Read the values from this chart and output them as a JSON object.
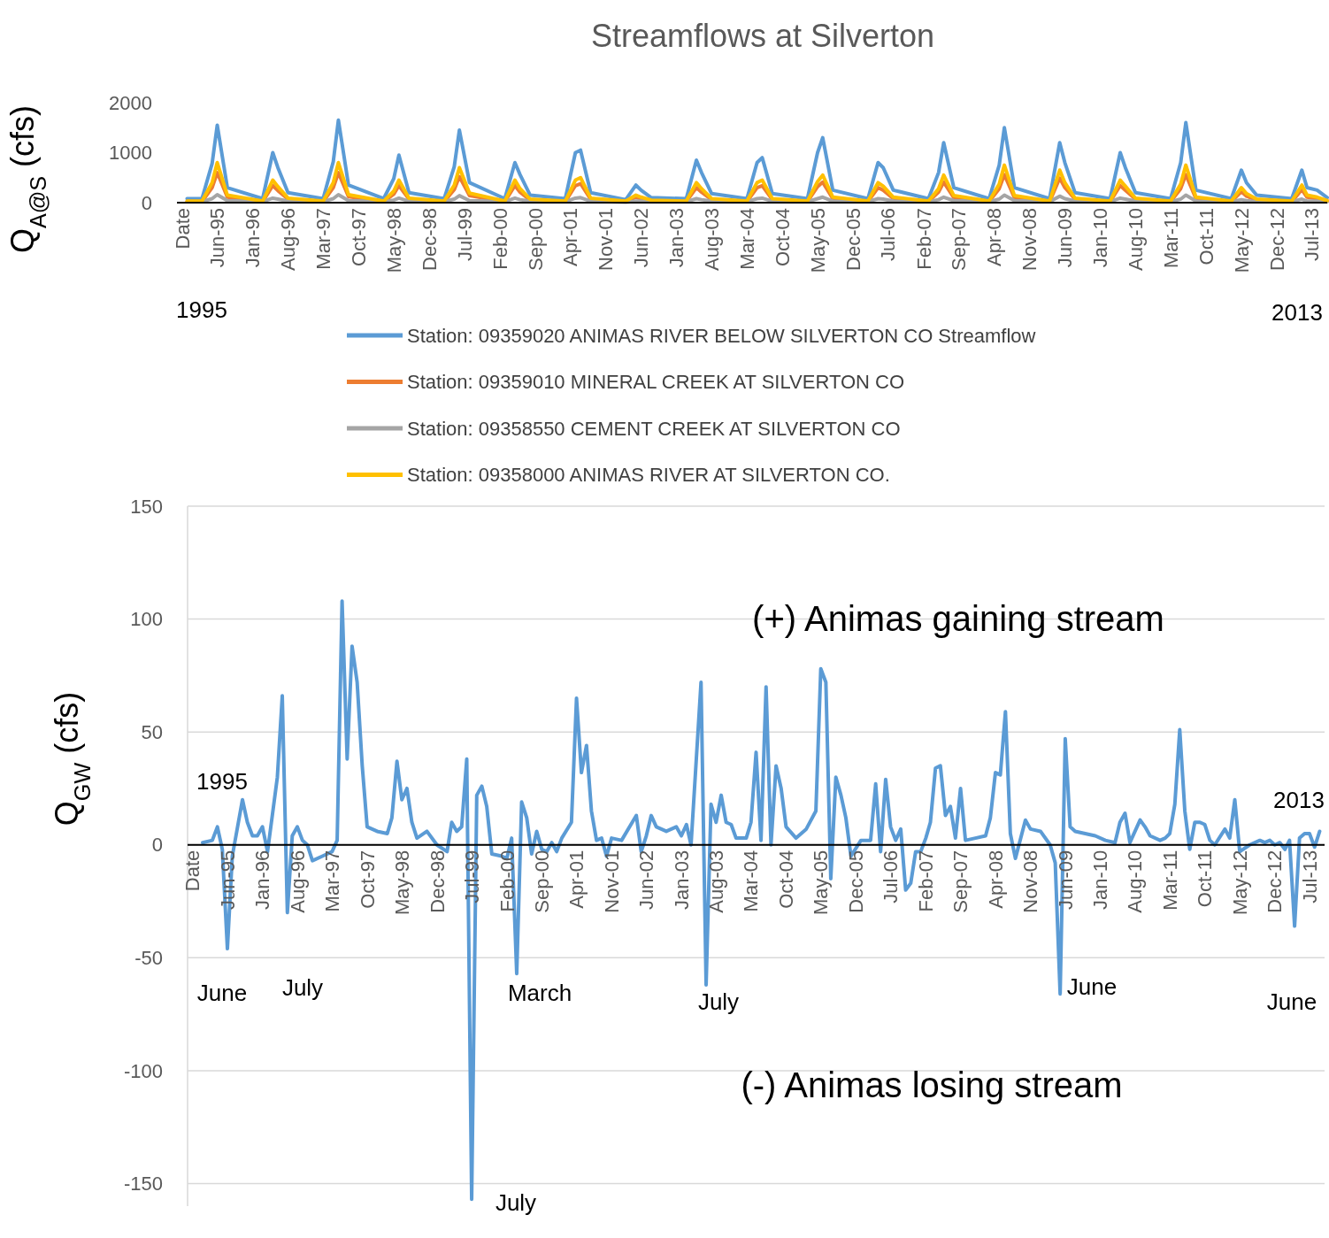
{
  "chart_data": [
    {
      "type": "line",
      "title": "Streamflows at Silverton",
      "ylabel": "Q$_{A@S}$ (cfs)",
      "legend": "bottom",
      "xlim": [
        "1994-10",
        "2013-10"
      ],
      "ylim": [
        0,
        2000
      ],
      "yticks": [
        0,
        1000,
        2000
      ],
      "xticks": [
        {
          "value": "1994-11",
          "label": "Date"
        },
        {
          "value": "1995-06",
          "label": "Jun-95"
        },
        {
          "value": "1996-01",
          "label": "Jan-96"
        },
        {
          "value": "1996-08",
          "label": "Aug-96"
        },
        {
          "value": "1997-03",
          "label": "Mar-97"
        },
        {
          "value": "1997-10",
          "label": "Oct-97"
        },
        {
          "value": "1998-05",
          "label": "May-98"
        },
        {
          "value": "1998-12",
          "label": "Dec-98"
        },
        {
          "value": "1999-07",
          "label": "Jul-99"
        },
        {
          "value": "2000-02",
          "label": "Feb-00"
        },
        {
          "value": "2000-09",
          "label": "Sep-00"
        },
        {
          "value": "2001-04",
          "label": "Apr-01"
        },
        {
          "value": "2001-11",
          "label": "Nov-01"
        },
        {
          "value": "2002-06",
          "label": "Jun-02"
        },
        {
          "value": "2003-01",
          "label": "Jan-03"
        },
        {
          "value": "2003-08",
          "label": "Aug-03"
        },
        {
          "value": "2004-03",
          "label": "Mar-04"
        },
        {
          "value": "2004-10",
          "label": "Oct-04"
        },
        {
          "value": "2005-05",
          "label": "May-05"
        },
        {
          "value": "2005-12",
          "label": "Dec-05"
        },
        {
          "value": "2006-07",
          "label": "Jul-06"
        },
        {
          "value": "2007-02",
          "label": "Feb-07"
        },
        {
          "value": "2007-09",
          "label": "Sep-07"
        },
        {
          "value": "2008-04",
          "label": "Apr-08"
        },
        {
          "value": "2008-11",
          "label": "Nov-08"
        },
        {
          "value": "2009-06",
          "label": "Jun-09"
        },
        {
          "value": "2010-01",
          "label": "Jan-10"
        },
        {
          "value": "2010-08",
          "label": "Aug-10"
        },
        {
          "value": "2011-03",
          "label": "Mar-11"
        },
        {
          "value": "2011-10",
          "label": "Oct-11"
        },
        {
          "value": "2012-05",
          "label": "May-12"
        },
        {
          "value": "2012-12",
          "label": "Dec-12"
        },
        {
          "value": "2013-07",
          "label": "Jul-13"
        }
      ],
      "annotations": [
        "1995",
        "2013"
      ],
      "x": [
        "1994-12",
        "1995-03",
        "1995-05",
        "1995-06",
        "1995-08",
        "1996-03",
        "1996-05",
        "1996-06",
        "1996-08",
        "1997-03",
        "1997-05",
        "1997-06",
        "1997-08",
        "1998-03",
        "1998-05",
        "1998-06",
        "1998-08",
        "1999-03",
        "1999-05",
        "1999-06",
        "1999-08",
        "2000-03",
        "2000-05",
        "2000-06",
        "2000-08",
        "2001-03",
        "2001-05",
        "2001-06",
        "2001-08",
        "2002-03",
        "2002-05",
        "2002-06",
        "2002-08",
        "2003-03",
        "2003-05",
        "2003-06",
        "2003-08",
        "2004-03",
        "2004-05",
        "2004-06",
        "2004-08",
        "2005-03",
        "2005-05",
        "2005-06",
        "2005-08",
        "2006-03",
        "2006-05",
        "2006-06",
        "2006-08",
        "2007-03",
        "2007-05",
        "2007-06",
        "2007-08",
        "2008-03",
        "2008-05",
        "2008-06",
        "2008-08",
        "2009-03",
        "2009-05",
        "2009-06",
        "2009-08",
        "2010-03",
        "2010-05",
        "2010-06",
        "2010-08",
        "2011-03",
        "2011-05",
        "2011-06",
        "2011-08",
        "2012-03",
        "2012-05",
        "2012-06",
        "2012-08",
        "2013-03",
        "2013-05",
        "2013-06",
        "2013-08",
        "2013-10"
      ],
      "series": [
        {
          "name": "Station: 09359020 ANIMAS RIVER BELOW SILVERTON CO Streamflow",
          "color": "#5b9bd5",
          "values": [
            80,
            80,
            780,
            1550,
            300,
            80,
            1000,
            700,
            200,
            80,
            820,
            1650,
            350,
            80,
            480,
            950,
            200,
            80,
            720,
            1450,
            400,
            80,
            800,
            560,
            150,
            80,
            1000,
            1050,
            200,
            60,
            350,
            250,
            100,
            80,
            850,
            600,
            180,
            80,
            800,
            900,
            180,
            80,
            1000,
            1300,
            250,
            80,
            800,
            700,
            250,
            80,
            600,
            1200,
            300,
            80,
            750,
            1500,
            300,
            80,
            1200,
            800,
            200,
            80,
            1000,
            700,
            200,
            80,
            800,
            1600,
            250,
            80,
            650,
            400,
            150,
            80,
            650,
            300,
            250,
            100
          ]
        },
        {
          "name": "Station: 09359010 MINERAL CREEK AT SILVERTON CO",
          "color": "#ed7d31",
          "values": [
            20,
            20,
            300,
            600,
            110,
            20,
            340,
            240,
            70,
            20,
            300,
            600,
            120,
            20,
            170,
            340,
            70,
            20,
            260,
            520,
            140,
            20,
            340,
            210,
            50,
            20,
            340,
            380,
            70,
            20,
            110,
            80,
            40,
            20,
            300,
            210,
            60,
            20,
            300,
            340,
            60,
            20,
            320,
            410,
            80,
            20,
            300,
            250,
            80,
            20,
            210,
            410,
            100,
            20,
            280,
            560,
            100,
            20,
            490,
            300,
            70,
            20,
            340,
            250,
            70,
            20,
            280,
            560,
            80,
            20,
            220,
            130,
            50,
            20,
            260,
            110,
            80,
            30
          ]
        },
        {
          "name": "Station: 09358550 CEMENT CREEK AT SILVERTON CO",
          "color": "#a5a5a5",
          "values": [
            null,
            20,
            80,
            160,
            40,
            20,
            90,
            70,
            30,
            20,
            80,
            160,
            40,
            20,
            50,
            90,
            30,
            20,
            70,
            140,
            40,
            20,
            90,
            60,
            30,
            20,
            90,
            100,
            30,
            10,
            30,
            30,
            20,
            20,
            80,
            60,
            30,
            20,
            80,
            90,
            30,
            20,
            80,
            110,
            30,
            20,
            80,
            70,
            30,
            20,
            60,
            110,
            40,
            20,
            70,
            150,
            40,
            20,
            130,
            80,
            30,
            20,
            90,
            70,
            30,
            20,
            70,
            150,
            30,
            20,
            60,
            40,
            20,
            20,
            70,
            30,
            30,
            20
          ]
        },
        {
          "name": "Station: 09358000 ANIMAS RIVER AT SILVERTON CO.",
          "color": "#ffc000",
          "values": [
            30,
            30,
            400,
            800,
            150,
            30,
            450,
            320,
            90,
            30,
            400,
            800,
            160,
            30,
            230,
            450,
            90,
            30,
            350,
            700,
            190,
            30,
            450,
            280,
            70,
            30,
            450,
            500,
            90,
            30,
            150,
            110,
            50,
            30,
            400,
            280,
            80,
            30,
            400,
            450,
            80,
            30,
            420,
            550,
            110,
            30,
            400,
            330,
            110,
            30,
            280,
            550,
            140,
            30,
            370,
            750,
            140,
            30,
            650,
            400,
            90,
            30,
            450,
            330,
            90,
            30,
            370,
            750,
            110,
            30,
            300,
            180,
            70,
            30,
            350,
            150,
            110,
            40
          ]
        }
      ]
    },
    {
      "type": "line",
      "ylabel": "Q$_{GW}$ (cfs)",
      "grid": "y",
      "xlim": [
        "1994-10",
        "2013-10"
      ],
      "ylim": [
        -160,
        150
      ],
      "yticks": [
        -150,
        -100,
        -50,
        0,
        50,
        100,
        150
      ],
      "xticks": [
        {
          "value": "1994-11",
          "label": "Date"
        },
        {
          "value": "1995-06",
          "label": "Jun-95"
        },
        {
          "value": "1996-01",
          "label": "Jan-96"
        },
        {
          "value": "1996-08",
          "label": "Aug-96"
        },
        {
          "value": "1997-03",
          "label": "Mar-97"
        },
        {
          "value": "1997-10",
          "label": "Oct-97"
        },
        {
          "value": "1998-05",
          "label": "May-98"
        },
        {
          "value": "1998-12",
          "label": "Dec-98"
        },
        {
          "value": "1999-07",
          "label": "Jul-99"
        },
        {
          "value": "2000-02",
          "label": "Feb-00"
        },
        {
          "value": "2000-09",
          "label": "Sep-00"
        },
        {
          "value": "2001-04",
          "label": "Apr-01"
        },
        {
          "value": "2001-11",
          "label": "Nov-01"
        },
        {
          "value": "2002-06",
          "label": "Jun-02"
        },
        {
          "value": "2003-01",
          "label": "Jan-03"
        },
        {
          "value": "2003-08",
          "label": "Aug-03"
        },
        {
          "value": "2004-03",
          "label": "Mar-04"
        },
        {
          "value": "2004-10",
          "label": "Oct-04"
        },
        {
          "value": "2005-05",
          "label": "May-05"
        },
        {
          "value": "2005-12",
          "label": "Dec-05"
        },
        {
          "value": "2006-07",
          "label": "Jul-06"
        },
        {
          "value": "2007-02",
          "label": "Feb-07"
        },
        {
          "value": "2007-09",
          "label": "Sep-07"
        },
        {
          "value": "2008-04",
          "label": "Apr-08"
        },
        {
          "value": "2008-11",
          "label": "Nov-08"
        },
        {
          "value": "2009-06",
          "label": "Jun-09"
        },
        {
          "value": "2010-01",
          "label": "Jan-10"
        },
        {
          "value": "2010-08",
          "label": "Aug-10"
        },
        {
          "value": "2011-03",
          "label": "Mar-11"
        },
        {
          "value": "2011-10",
          "label": "Oct-11"
        },
        {
          "value": "2012-05",
          "label": "May-12"
        },
        {
          "value": "2012-12",
          "label": "Dec-12"
        },
        {
          "value": "2013-07",
          "label": "Jul-13"
        }
      ],
      "annotations": [
        "1995",
        "2013",
        "June",
        "July",
        "March",
        "July",
        "June",
        "June",
        "July",
        "(+) Animas gaining stream",
        "(-) Animas losing stream"
      ],
      "series": [
        {
          "color": "#5b9bd5",
          "x": [
            "1995-01",
            "1995-03",
            "1995-04",
            "1995-05",
            "1995-06",
            "1995-07",
            "1995-09",
            "1995-10",
            "1995-11",
            "1995-12",
            "1996-01",
            "1996-02",
            "1996-04",
            "1996-05",
            "1996-06",
            "1996-07",
            "1996-08",
            "1996-09",
            "1996-10",
            "1996-11",
            "1997-01",
            "1997-03",
            "1997-04",
            "1997-05",
            "1997-06",
            "1997-07",
            "1997-08",
            "1997-09",
            "1997-10",
            "1997-12",
            "1998-02",
            "1998-03",
            "1998-04",
            "1998-05",
            "1998-06",
            "1998-07",
            "1998-08",
            "1998-10",
            "1998-12",
            "1999-02",
            "1999-03",
            "1999-04",
            "1999-05",
            "1999-06",
            "1999-07",
            "1999-08",
            "1999-09",
            "1999-10",
            "1999-11",
            "2000-01",
            "2000-02",
            "2000-03",
            "2000-04",
            "2000-05",
            "2000-06",
            "2000-07",
            "2000-08",
            "2000-09",
            "2000-10",
            "2000-11",
            "2000-12",
            "2001-01",
            "2001-03",
            "2001-04",
            "2001-05",
            "2001-06",
            "2001-07",
            "2001-08",
            "2001-09",
            "2001-10",
            "2001-11",
            "2002-01",
            "2002-04",
            "2002-05",
            "2002-06",
            "2002-07",
            "2002-08",
            "2002-10",
            "2002-12",
            "2003-01",
            "2003-02",
            "2003-03",
            "2003-05",
            "2003-06",
            "2003-07",
            "2003-08",
            "2003-09",
            "2003-10",
            "2003-11",
            "2003-12",
            "2004-02",
            "2004-03",
            "2004-04",
            "2004-05",
            "2004-06",
            "2004-07",
            "2004-08",
            "2004-09",
            "2004-10",
            "2004-12",
            "2005-02",
            "2005-04",
            "2005-05",
            "2005-06",
            "2005-07",
            "2005-08",
            "2005-09",
            "2005-10",
            "2005-11",
            "2006-01",
            "2006-03",
            "2006-04",
            "2006-05",
            "2006-06",
            "2006-07",
            "2006-08",
            "2006-09",
            "2006-10",
            "2006-11",
            "2006-12",
            "2007-01",
            "2007-02",
            "2007-03",
            "2007-04",
            "2007-05",
            "2007-06",
            "2007-07",
            "2007-08",
            "2007-09",
            "2007-10",
            "2007-12",
            "2008-02",
            "2008-03",
            "2008-04",
            "2008-05",
            "2008-06",
            "2008-07",
            "2008-08",
            "2008-10",
            "2008-11",
            "2009-01",
            "2009-03",
            "2009-04",
            "2009-05",
            "2009-06",
            "2009-07",
            "2009-08",
            "2009-10",
            "2009-12",
            "2010-02",
            "2010-04",
            "2010-05",
            "2010-06",
            "2010-07",
            "2010-09",
            "2010-10",
            "2010-11",
            "2011-01",
            "2011-02",
            "2011-03",
            "2011-04",
            "2011-05",
            "2011-06",
            "2011-07",
            "2011-08",
            "2011-09",
            "2011-10",
            "2011-11",
            "2011-12",
            "2012-02",
            "2012-03",
            "2012-04",
            "2012-05",
            "2012-07",
            "2012-09",
            "2012-10",
            "2012-11",
            "2012-12",
            "2013-01",
            "2013-02",
            "2013-03",
            "2013-04",
            "2013-05",
            "2013-06",
            "2013-07",
            "2013-08",
            "2013-09"
          ],
          "values": [
            1,
            2,
            8,
            -2,
            -46,
            -5,
            20,
            10,
            4,
            4,
            8,
            -3,
            30,
            66,
            -30,
            4,
            8,
            2,
            0,
            -7,
            -5,
            -3,
            2,
            108,
            38,
            88,
            72,
            35,
            8,
            6,
            5,
            12,
            37,
            20,
            25,
            10,
            3,
            6,
            0,
            -3,
            10,
            6,
            8,
            38,
            -157,
            22,
            26,
            17,
            -4,
            -5,
            -6,
            3,
            -57,
            19,
            12,
            -4,
            6,
            -2,
            -3,
            1,
            -3,
            3,
            10,
            65,
            32,
            44,
            15,
            2,
            3,
            -5,
            3,
            2,
            13,
            -3,
            4,
            13,
            8,
            6,
            8,
            4,
            9,
            0,
            72,
            -62,
            18,
            10,
            22,
            10,
            9,
            3,
            3,
            10,
            41,
            2,
            70,
            0,
            35,
            25,
            8,
            3,
            7,
            15,
            78,
            72,
            -15,
            30,
            22,
            12,
            -5,
            2,
            2,
            27,
            -3,
            29,
            8,
            2,
            7,
            -20,
            -17,
            -3,
            -3,
            3,
            10,
            34,
            35,
            13,
            17,
            3,
            25,
            2,
            3,
            4,
            12,
            32,
            31,
            59,
            5,
            -6,
            11,
            7,
            6,
            0,
            -8,
            -66,
            47,
            8,
            6,
            5,
            4,
            2,
            1,
            10,
            14,
            1,
            11,
            8,
            4,
            2,
            3,
            5,
            18,
            51,
            15,
            -2,
            10,
            10,
            9,
            2,
            0,
            7,
            3,
            20,
            -3,
            0,
            2,
            1,
            2,
            0,
            1,
            -2,
            2,
            -36,
            3,
            5,
            5,
            -1,
            6
          ]
        }
      ]
    }
  ]
}
